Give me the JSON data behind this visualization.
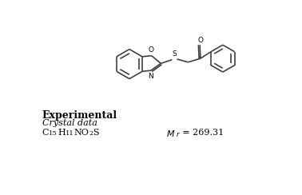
{
  "bg_color": "#ffffff",
  "line_color": "#404040",
  "text_color": "#000000",
  "experimental_text": "Experimental",
  "crystal_data_text": "Crystal data",
  "mr_text": "$\\mathit{M}_{r}$\\,=\\,269.31",
  "lw": 1.2,
  "struct_scale": 1.0
}
